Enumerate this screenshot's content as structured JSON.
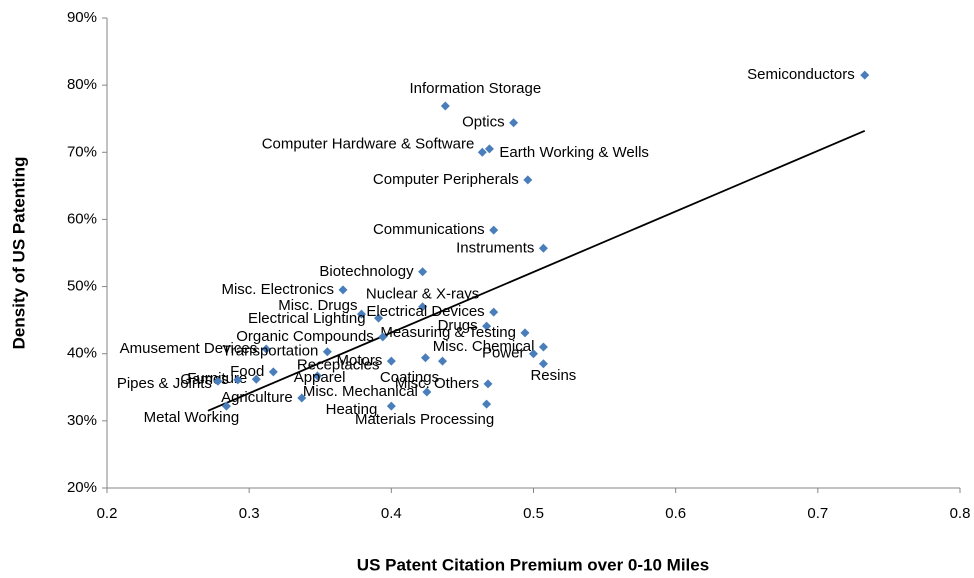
{
  "chart_data": {
    "type": "scatter",
    "xlabel": "US Patent Citation Premium over 0-10 Miles",
    "ylabel": "Density of US Patenting",
    "color": "#4a7ebb",
    "labels": [
      "Semiconductors",
      "Information Storage",
      "Optics",
      "Computer Hardware & Software",
      "Earth Working & Wells",
      "Computer Peripherals",
      "Communications",
      "Instruments",
      "Biotechnology",
      "Misc. Electronics",
      "Nuclear & X-rays",
      "Misc. Drugs",
      "Electrical Lighting",
      "Electrical Devices",
      "Drugs",
      "Measuring & Testing",
      "Organic Compounds",
      "Amusement Devices",
      "Transportation",
      "Misc. Chemical",
      "Motors",
      "Power",
      "Resins",
      "Receptacles",
      "Coatings",
      "Misc. Others",
      "Apparel",
      "Food",
      "Furniture",
      "Games",
      "Pipes & Joints",
      "Agriculture",
      "Misc. Mechanical",
      "Metal Working",
      "Heating",
      "Materials Processing"
    ],
    "x": [
      0.733,
      0.438,
      0.486,
      0.464,
      0.469,
      0.496,
      0.472,
      0.507,
      0.422,
      0.366,
      0.422,
      0.379,
      0.391,
      0.472,
      0.467,
      0.494,
      0.394,
      0.312,
      0.355,
      0.507,
      0.4,
      0.5,
      0.507,
      0.424,
      0.436,
      0.468,
      0.348,
      0.317,
      0.305,
      0.292,
      0.278,
      0.337,
      0.425,
      0.284,
      0.4,
      0.467
    ],
    "y": [
      81.5,
      76.9,
      74.4,
      70.0,
      70.5,
      65.9,
      58.4,
      55.7,
      52.2,
      49.5,
      47.0,
      45.9,
      45.3,
      46.2,
      44.1,
      43.1,
      42.5,
      40.7,
      40.3,
      41.0,
      38.9,
      40.0,
      38.5,
      39.4,
      38.9,
      35.5,
      36.7,
      37.3,
      36.2,
      36.1,
      35.9,
      33.4,
      34.3,
      32.2,
      32.2,
      32.5
    ],
    "trendline": {
      "x": [
        0.271,
        0.733
      ],
      "y": [
        31.5,
        73.2
      ]
    },
    "xlim": [
      0.2,
      0.8
    ],
    "xticks": [
      0.2,
      0.3,
      0.4,
      0.5,
      0.6,
      0.7,
      0.8
    ],
    "ylim": [
      20,
      90
    ],
    "yticks": [
      {
        "value": 20,
        "label": "20%"
      },
      {
        "value": 30,
        "label": "30%"
      },
      {
        "value": 40,
        "label": "40%"
      },
      {
        "value": 50,
        "label": "50%"
      },
      {
        "value": 60,
        "label": "60%"
      },
      {
        "value": 70,
        "label": "70%"
      },
      {
        "value": 80,
        "label": "80%"
      },
      {
        "value": 90,
        "label": "90%"
      }
    ]
  }
}
